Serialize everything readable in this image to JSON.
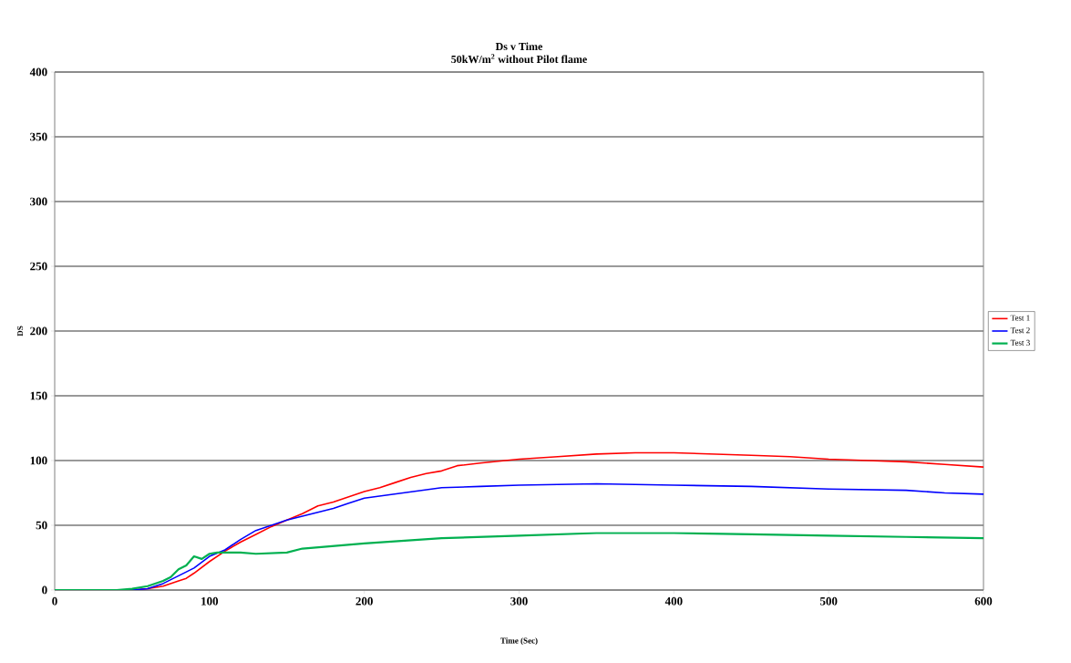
{
  "chart_data": {
    "type": "line",
    "title": "Ds v Time",
    "subtitle": "50kW/m$^{2}$ without Pilot flame",
    "xlabel": "Time (Sec)",
    "ylabel": "DS",
    "xlim": [
      0,
      600
    ],
    "xticks": [
      0,
      100,
      200,
      300,
      400,
      500,
      600
    ],
    "ylim": [
      0,
      400
    ],
    "yticks": [
      0,
      50,
      100,
      150,
      200,
      250,
      300,
      350,
      400
    ],
    "grid": "y",
    "legend": "right",
    "marker": "none",
    "line_style": "solid",
    "series": [
      {
        "name": "Test 1",
        "color": "#ff0000",
        "x": [
          0,
          50,
          60,
          70,
          80,
          85,
          90,
          100,
          110,
          120,
          130,
          140,
          150,
          160,
          170,
          180,
          190,
          200,
          210,
          220,
          230,
          240,
          250,
          260,
          275,
          300,
          325,
          350,
          375,
          400,
          425,
          450,
          475,
          500,
          525,
          550,
          575,
          600
        ],
        "values": [
          0,
          0,
          1,
          3,
          7,
          9,
          13,
          22,
          30,
          37,
          43,
          49,
          54,
          59,
          65,
          68,
          72,
          76,
          79,
          83,
          87,
          90,
          92,
          96,
          98,
          101,
          103,
          105,
          106,
          106,
          105,
          104,
          103,
          101,
          100,
          99,
          97,
          95
        ]
      },
      {
        "name": "Test 2",
        "color": "#0000ff",
        "x": [
          0,
          50,
          60,
          70,
          80,
          90,
          100,
          110,
          120,
          130,
          140,
          150,
          160,
          170,
          180,
          190,
          200,
          225,
          250,
          275,
          300,
          350,
          400,
          450,
          500,
          550,
          575,
          600
        ],
        "values": [
          0,
          0,
          1,
          5,
          11,
          17,
          26,
          31,
          39,
          46,
          50,
          54,
          57,
          60,
          63,
          67,
          71,
          75,
          79,
          80,
          81,
          82,
          81,
          80,
          78,
          77,
          75,
          74
        ]
      },
      {
        "name": "Test 3",
        "color": "#00b050",
        "x": [
          0,
          40,
          50,
          60,
          70,
          75,
          80,
          85,
          90,
          95,
          100,
          105,
          120,
          130,
          150,
          160,
          200,
          250,
          300,
          350,
          400,
          450,
          500,
          550,
          600
        ],
        "values": [
          0,
          0,
          1,
          3,
          7,
          10,
          16,
          19,
          26,
          24,
          28,
          29,
          29,
          28,
          29,
          32,
          36,
          40,
          42,
          44,
          44,
          43,
          42,
          41,
          40
        ]
      }
    ]
  }
}
